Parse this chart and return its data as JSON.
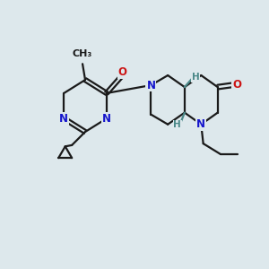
{
  "background_color": "#dde8ec",
  "bond_color": "#1a1a1a",
  "N_color": "#1515cc",
  "O_color": "#cc1515",
  "H_color": "#4a8888",
  "line_width": 1.6,
  "font_size_atom": 8.5,
  "fig_width": 3.0,
  "fig_height": 3.0,
  "xlim": [
    0,
    10
  ],
  "ylim": [
    0,
    10
  ]
}
